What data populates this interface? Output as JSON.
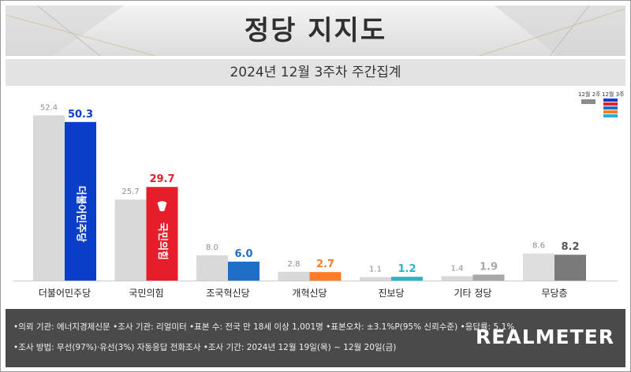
{
  "header": {
    "title": "정당 지지도",
    "subtitle": "2024년 12월 3주차 주간집계"
  },
  "legend": {
    "prev_label": "12월 2주",
    "curr_label": "12월 3주"
  },
  "colors": {
    "prev_bar": "#d9d9d9",
    "prev_bar_last": "#dedede",
    "prev_value_text": "#8a8a8a",
    "parties": [
      "#0a3ec9",
      "#e61e2b",
      "#1f6fc6",
      "#ff7b28",
      "#2bb0cf",
      "#a8a8a8",
      "#7a7a7a"
    ],
    "value_text": [
      "#0a3ec9",
      "#e61e2b",
      "#1f6fc6",
      "#ff7b28",
      "#2bb0cf",
      "#a8a8a8",
      "#555555"
    ]
  },
  "chart_data": {
    "type": "bar",
    "title": "정당 지지도",
    "subtitle": "2024년 12월 3주차 주간집계",
    "categories": [
      "더불어민주당",
      "국민의힘",
      "조국혁신당",
      "개혁신당",
      "진보당",
      "기타 정당",
      "무당층"
    ],
    "series": [
      {
        "name": "12월 2주",
        "values": [
          52.4,
          25.7,
          8.0,
          2.8,
          1.1,
          1.4,
          8.6
        ]
      },
      {
        "name": "12월 3주",
        "values": [
          50.3,
          29.7,
          6.0,
          2.7,
          1.2,
          1.9,
          8.2
        ]
      }
    ],
    "value_labels": {
      "prev": [
        "52.4",
        "25.7",
        "8.0",
        "2.8",
        "1.1",
        "1.4",
        "8.6"
      ],
      "curr": [
        "50.3",
        "29.7",
        "6.0",
        "2.7",
        "1.2",
        "1.9",
        "8.2"
      ]
    },
    "in_bar_logos": [
      "더불어민주당",
      "국민의힘"
    ],
    "ylim": [
      0,
      60
    ],
    "grid": false,
    "legend_position": "top-right",
    "xlabel": "",
    "ylabel": ""
  },
  "footer": {
    "line1": "•의뢰 기관: 에너지경제신문  •조사 기관: 리얼미터 •표본 수: 전국 만 18세 이상 1,001명 •표본오차: ±3.1%P(95% 신뢰수준) •응답률: 5.1%",
    "line2": "•조사 방법: 무선(97%)·유선(3%) 자동응답 전화조사 •조사 기간: 2024년 12월 19일(목) ~ 12월 20일(금)",
    "logo": "REALMETER"
  }
}
